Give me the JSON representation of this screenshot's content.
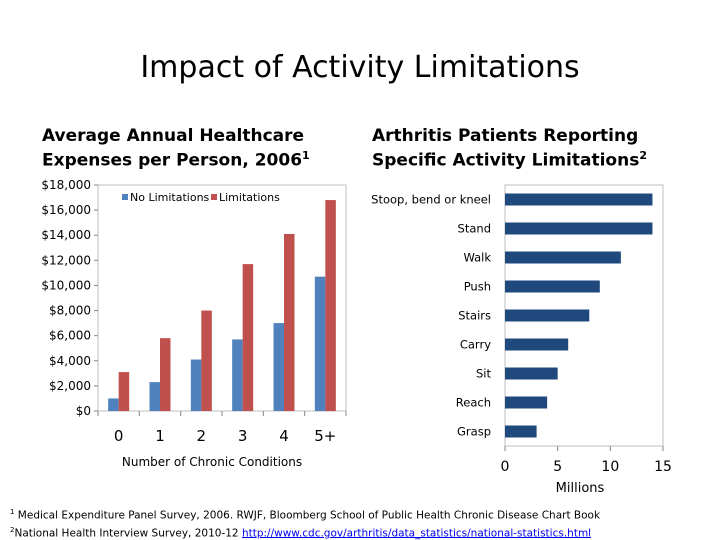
{
  "slide": {
    "title": "Impact of Activity Limitations"
  },
  "footnotes": [
    {
      "mark": "1",
      "text": " Medical Expenditure Panel Survey, 2006. RWJF, Bloomberg School of Public Health Chronic Disease Chart Book",
      "link": ""
    },
    {
      "mark": "2",
      "text": "National Health Interview Survey, 2010-12 ",
      "link": "http://www.cdc.gov/arthritis/data_statistics/national-statistics.html"
    }
  ],
  "colors": {
    "no_limitations": "#4f81bd",
    "limitations": "#c0504d",
    "hbar": "#1f497d"
  },
  "chart_data": [
    {
      "type": "bar",
      "title": "Average Annual Healthcare Expenses per Person, 2006",
      "title_sup": "1",
      "xlabel": "Number of Chronic Conditions",
      "ylabel": "",
      "categories": [
        "0",
        "1",
        "2",
        "3",
        "4",
        "5+"
      ],
      "series": [
        {
          "name": "No Limitations",
          "values": [
            1000,
            2300,
            4100,
            5700,
            7000,
            10700
          ]
        },
        {
          "name": "Limitations",
          "values": [
            3100,
            5800,
            8000,
            11700,
            14100,
            16800
          ]
        }
      ],
      "ylim": [
        0,
        18000
      ],
      "yticks": [
        "$0",
        "$2,000",
        "$4,000",
        "$6,000",
        "$8,000",
        "$10,000",
        "$12,000",
        "$14,000",
        "$16,000",
        "$18,000"
      ],
      "legend": "top"
    },
    {
      "type": "bar",
      "orientation": "horizontal",
      "title": "Arthritis Patients Reporting Specific Activity Limitations",
      "title_sup": "2",
      "xlabel": "Millions",
      "ylabel": "",
      "categories": [
        "Stoop, bend or kneel",
        "Stand",
        "Walk",
        "Push",
        "Stairs",
        "Carry",
        "Sit",
        "Reach",
        "Grasp"
      ],
      "values": [
        14,
        14,
        11,
        9,
        8,
        6,
        5,
        4,
        3
      ],
      "xlim": [
        0,
        15
      ],
      "xticks": [
        "0",
        "5",
        "10",
        "15"
      ]
    }
  ]
}
